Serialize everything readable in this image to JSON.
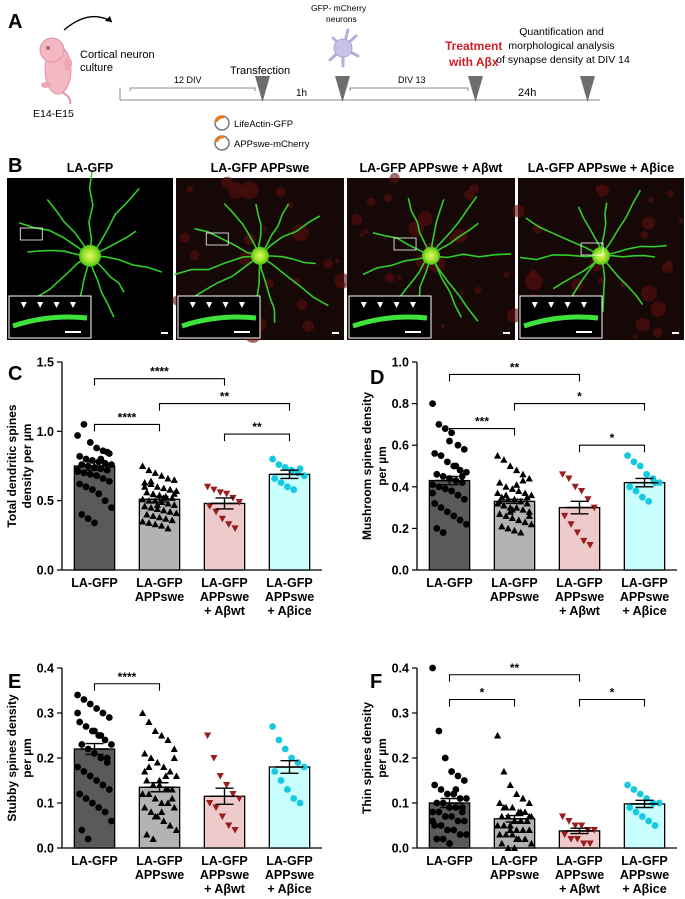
{
  "panelA": {
    "letter": "A",
    "embryo_label": "E14-E15",
    "culture_label": "Cortical neuron\nculture",
    "div12": "12 DIV",
    "transfection": "Transfection",
    "plasmid1": "LifeActin-GFP",
    "plasmid2": "APPswe-mCherry",
    "neurons_label": "GFP- mCherry\nneurons",
    "h1": "1h",
    "div13": "DIV 13",
    "treatment": "Treatment\nwith Aβx",
    "h24": "24h",
    "quant": "Quantification and\nmorphological analysis\nof synapse density at DIV 14",
    "colors": {
      "treatment": "#d41f26",
      "marker": "#6d6e71",
      "neuron": "#c7c3e6"
    }
  },
  "panelB": {
    "letter": "B",
    "titles": [
      "LA-GFP",
      "LA-GFP APPswe",
      "LA-GFP APPswe + Aβwt",
      "LA-GFP APPswe + Aβice"
    ]
  },
  "colors": {
    "lagfp": "#5a5a5a",
    "appswe": "#b3b3b3",
    "abwt": "#eecacb",
    "abice": "#c9ffff",
    "dot_lagfp": "#000000",
    "dot_appswe": "#000000",
    "dot_abwt": "#9b1c1c",
    "dot_abice": "#14c9e0"
  },
  "chart_data": [
    {
      "panel": "C",
      "type": "bar",
      "ylabel": "Total dendritic spines\ndensity per µm",
      "ylim": [
        0,
        1.5
      ],
      "yticks": [
        "0.0",
        "0.5",
        "1.0",
        "1.5"
      ],
      "categories": [
        "LA-GFP\n",
        "LA-GFP\nAPPswe",
        "LA-GFP\nAPPswe\n+ Aβwt",
        "LA-GFP\nAPPswe\n+ Aβice"
      ],
      "means": [
        0.75,
        0.51,
        0.48,
        0.69
      ],
      "sem": [
        0.03,
        0.02,
        0.04,
        0.03
      ],
      "points": [
        [
          0.97,
          1.05,
          0.92,
          0.88,
          0.86,
          0.84,
          0.82,
          0.8,
          0.79,
          0.78,
          0.77,
          0.76,
          0.76,
          0.75,
          0.74,
          0.73,
          0.72,
          0.71,
          0.7,
          0.69,
          0.68,
          0.66,
          0.64,
          0.62,
          0.6,
          0.58,
          0.55,
          0.5,
          0.45,
          0.4,
          0.37,
          0.34,
          0.8,
          0.85,
          0.72
        ],
        [
          0.75,
          0.72,
          0.7,
          0.68,
          0.66,
          0.65,
          0.63,
          0.62,
          0.6,
          0.59,
          0.58,
          0.57,
          0.56,
          0.55,
          0.54,
          0.53,
          0.52,
          0.51,
          0.5,
          0.5,
          0.49,
          0.48,
          0.47,
          0.46,
          0.45,
          0.44,
          0.43,
          0.42,
          0.41,
          0.4,
          0.39,
          0.38,
          0.37,
          0.36,
          0.35,
          0.34,
          0.33,
          0.32,
          0.3,
          0.55,
          0.6,
          0.64,
          0.47,
          0.52,
          0.58
        ],
        [
          0.6,
          0.58,
          0.56,
          0.55,
          0.52,
          0.49,
          0.46,
          0.42,
          0.37,
          0.33,
          0.3
        ],
        [
          0.8,
          0.76,
          0.74,
          0.72,
          0.7,
          0.68,
          0.66,
          0.63,
          0.6,
          0.58,
          0.73
        ]
      ],
      "markers": [
        "circle",
        "triangle",
        "tri-down",
        "circle"
      ],
      "sig": [
        {
          "from": 0,
          "to": 2,
          "level": 1.38,
          "label": "****"
        },
        {
          "from": 1,
          "to": 3,
          "level": 1.2,
          "label": "**"
        },
        {
          "from": 0,
          "to": 1,
          "level": 1.05,
          "label": "****"
        },
        {
          "from": 2,
          "to": 3,
          "level": 0.98,
          "label": "**"
        }
      ]
    },
    {
      "panel": "D",
      "type": "bar",
      "ylabel": "Mushroom spines density\nper µm",
      "ylim": [
        0,
        1.0
      ],
      "yticks": [
        "0.0",
        "0.2",
        "0.4",
        "0.6",
        "0.8",
        "1.0"
      ],
      "categories": [
        "LA-GFP\n",
        "LA-GFP\nAPPswe",
        "LA-GFP\nAPPswe\n+ Aβwt",
        "LA-GFP\nAPPswe\n+ Aβice"
      ],
      "means": [
        0.43,
        0.33,
        0.3,
        0.42
      ],
      "sem": [
        0.02,
        0.01,
        0.03,
        0.02
      ],
      "points": [
        [
          0.8,
          0.7,
          0.68,
          0.66,
          0.6,
          0.58,
          0.56,
          0.55,
          0.52,
          0.5,
          0.48,
          0.47,
          0.46,
          0.45,
          0.44,
          0.43,
          0.42,
          0.41,
          0.4,
          0.39,
          0.38,
          0.36,
          0.34,
          0.32,
          0.3,
          0.28,
          0.26,
          0.24,
          0.22,
          0.2,
          0.18,
          0.62,
          0.5,
          0.45,
          0.37
        ],
        [
          0.55,
          0.53,
          0.5,
          0.48,
          0.46,
          0.44,
          0.42,
          0.4,
          0.39,
          0.38,
          0.37,
          0.36,
          0.35,
          0.34,
          0.34,
          0.33,
          0.32,
          0.32,
          0.31,
          0.3,
          0.3,
          0.29,
          0.28,
          0.27,
          0.26,
          0.25,
          0.24,
          0.23,
          0.22,
          0.21,
          0.2,
          0.19,
          0.18,
          0.35,
          0.37,
          0.31,
          0.28,
          0.41,
          0.43,
          0.26,
          0.33,
          0.36,
          0.29
        ],
        [
          0.46,
          0.44,
          0.4,
          0.38,
          0.34,
          0.3,
          0.26,
          0.22,
          0.18,
          0.14,
          0.12
        ],
        [
          0.55,
          0.52,
          0.5,
          0.46,
          0.44,
          0.42,
          0.4,
          0.38,
          0.35,
          0.33,
          0.42
        ]
      ],
      "markers": [
        "circle",
        "triangle",
        "tri-down",
        "circle"
      ],
      "sig": [
        {
          "from": 0,
          "to": 2,
          "level": 0.94,
          "label": "**"
        },
        {
          "from": 1,
          "to": 3,
          "level": 0.8,
          "label": "*"
        },
        {
          "from": 0,
          "to": 1,
          "level": 0.68,
          "label": "***"
        },
        {
          "from": 2,
          "to": 3,
          "level": 0.6,
          "label": "*"
        }
      ]
    },
    {
      "panel": "E",
      "type": "bar",
      "ylabel": "Stubby spines density\nper µm",
      "ylim": [
        0,
        0.4
      ],
      "yticks": [
        "0.0",
        "0.1",
        "0.2",
        "0.3",
        "0.4"
      ],
      "categories": [
        "LA-GFP\n",
        "LA-GFP\nAPPswe",
        "LA-GFP\nAPPswe\n+ Aβwt",
        "LA-GFP\nAPPswe\n+ Aβice"
      ],
      "means": [
        0.22,
        0.135,
        0.115,
        0.18
      ],
      "sem": [
        0.012,
        0.01,
        0.018,
        0.014
      ],
      "points": [
        [
          0.34,
          0.33,
          0.32,
          0.31,
          0.3,
          0.29,
          0.28,
          0.27,
          0.26,
          0.25,
          0.24,
          0.23,
          0.23,
          0.22,
          0.21,
          0.2,
          0.19,
          0.18,
          0.17,
          0.16,
          0.15,
          0.14,
          0.13,
          0.12,
          0.11,
          0.1,
          0.09,
          0.08,
          0.06,
          0.04,
          0.02,
          0.26,
          0.25,
          0.2,
          0.3
        ],
        [
          0.3,
          0.28,
          0.26,
          0.25,
          0.24,
          0.22,
          0.21,
          0.2,
          0.19,
          0.18,
          0.17,
          0.16,
          0.15,
          0.14,
          0.14,
          0.13,
          0.13,
          0.12,
          0.12,
          0.11,
          0.1,
          0.1,
          0.09,
          0.09,
          0.08,
          0.07,
          0.06,
          0.05,
          0.04,
          0.03,
          0.02,
          0.15,
          0.16,
          0.11,
          0.12,
          0.18,
          0.07,
          0.08,
          0.13,
          0.2,
          0.17
        ],
        [
          0.25,
          0.2,
          0.16,
          0.14,
          0.12,
          0.11,
          0.1,
          0.09,
          0.07,
          0.05,
          0.04
        ],
        [
          0.27,
          0.24,
          0.22,
          0.2,
          0.19,
          0.18,
          0.17,
          0.15,
          0.13,
          0.11,
          0.1
        ]
      ],
      "markers": [
        "circle",
        "triangle",
        "tri-down",
        "circle"
      ],
      "sig": [
        {
          "from": 0,
          "to": 1,
          "level": 0.365,
          "label": "****"
        }
      ]
    },
    {
      "panel": "F",
      "type": "bar",
      "ylabel": "Thin spines density\nper µm",
      "ylim": [
        0,
        0.4
      ],
      "yticks": [
        "0.0",
        "0.1",
        "0.2",
        "0.3",
        "0.4"
      ],
      "categories": [
        "LA-GFP\n",
        "LA-GFP\nAPPswe",
        "LA-GFP\nAPPswe\n+ Aβwt",
        "LA-GFP\nAPPswe\n+ Aβice"
      ],
      "means": [
        0.1,
        0.065,
        0.038,
        0.098
      ],
      "sem": [
        0.01,
        0.007,
        0.006,
        0.008
      ],
      "points": [
        [
          0.4,
          0.26,
          0.2,
          0.17,
          0.16,
          0.15,
          0.14,
          0.13,
          0.12,
          0.12,
          0.11,
          0.11,
          0.1,
          0.1,
          0.09,
          0.09,
          0.08,
          0.08,
          0.08,
          0.07,
          0.07,
          0.06,
          0.06,
          0.05,
          0.05,
          0.04,
          0.04,
          0.03,
          0.03,
          0.02,
          0.02,
          0.01,
          0.13,
          0.09,
          0.06
        ],
        [
          0.25,
          0.17,
          0.14,
          0.12,
          0.11,
          0.1,
          0.1,
          0.09,
          0.09,
          0.08,
          0.08,
          0.07,
          0.07,
          0.07,
          0.06,
          0.06,
          0.06,
          0.05,
          0.05,
          0.05,
          0.04,
          0.04,
          0.04,
          0.03,
          0.03,
          0.03,
          0.02,
          0.02,
          0.01,
          0.01,
          0.0,
          0.0,
          0.08,
          0.06,
          0.05,
          0.09,
          0.04,
          0.02,
          0.11,
          0.07
        ],
        [
          0.07,
          0.06,
          0.05,
          0.05,
          0.04,
          0.04,
          0.03,
          0.02,
          0.02,
          0.01,
          0.01
        ],
        [
          0.14,
          0.13,
          0.12,
          0.11,
          0.1,
          0.1,
          0.09,
          0.08,
          0.07,
          0.06,
          0.05
        ]
      ],
      "markers": [
        "circle",
        "triangle",
        "tri-down",
        "circle"
      ],
      "sig": [
        {
          "from": 0,
          "to": 2,
          "level": 0.385,
          "label": "**"
        },
        {
          "from": 0,
          "to": 1,
          "level": 0.33,
          "label": "*"
        },
        {
          "from": 2,
          "to": 3,
          "level": 0.33,
          "label": "*"
        }
      ]
    }
  ]
}
